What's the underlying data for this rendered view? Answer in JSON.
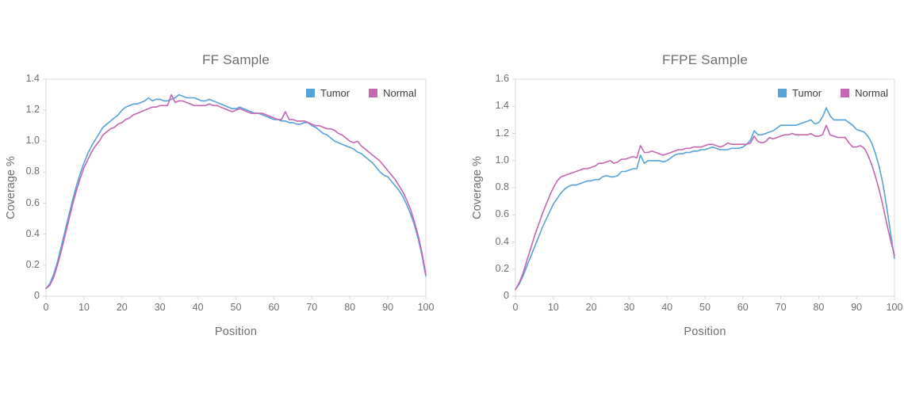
{
  "colors": {
    "tumor": "#56a3da",
    "normal": "#c367b2",
    "axis_line": "#d7dadd",
    "tick_line": "#d2d5d8",
    "muted_text": "#6e6e6e",
    "legend_text": "#3d3d3d"
  },
  "chart_data": [
    {
      "type": "line",
      "title": "FF Sample",
      "xlabel": "Position",
      "ylabel": "Coverage %",
      "xlim": [
        0,
        100
      ],
      "ylim": [
        0,
        1.4
      ],
      "xticks": [
        "0",
        "10",
        "20",
        "30",
        "40",
        "50",
        "60",
        "70",
        "80",
        "90",
        "100"
      ],
      "yticks": [
        "0",
        "0.2",
        "0.4",
        "0.6",
        "0.8",
        "1.0",
        "1.2",
        "1.4"
      ],
      "grid": false,
      "legend_position": "top-right-inside",
      "x_start": 0,
      "x_step": 1,
      "series": [
        {
          "name": "Tumor",
          "color": "#56a3da",
          "values": [
            0.05,
            0.08,
            0.14,
            0.22,
            0.32,
            0.42,
            0.52,
            0.62,
            0.71,
            0.79,
            0.86,
            0.92,
            0.97,
            1.01,
            1.05,
            1.09,
            1.11,
            1.13,
            1.15,
            1.17,
            1.2,
            1.22,
            1.23,
            1.24,
            1.24,
            1.25,
            1.26,
            1.28,
            1.26,
            1.27,
            1.27,
            1.26,
            1.26,
            1.27,
            1.28,
            1.3,
            1.29,
            1.28,
            1.28,
            1.28,
            1.27,
            1.26,
            1.26,
            1.27,
            1.26,
            1.25,
            1.24,
            1.23,
            1.22,
            1.21,
            1.21,
            1.22,
            1.21,
            1.2,
            1.19,
            1.18,
            1.18,
            1.17,
            1.16,
            1.15,
            1.14,
            1.14,
            1.13,
            1.13,
            1.12,
            1.12,
            1.11,
            1.11,
            1.12,
            1.12,
            1.1,
            1.09,
            1.07,
            1.05,
            1.04,
            1.02,
            1.0,
            0.99,
            0.98,
            0.97,
            0.96,
            0.95,
            0.93,
            0.92,
            0.9,
            0.88,
            0.86,
            0.83,
            0.8,
            0.78,
            0.77,
            0.74,
            0.71,
            0.68,
            0.64,
            0.59,
            0.53,
            0.46,
            0.37,
            0.26,
            0.13
          ]
        },
        {
          "name": "Normal",
          "color": "#c367b2",
          "values": [
            0.05,
            0.07,
            0.12,
            0.2,
            0.29,
            0.39,
            0.49,
            0.59,
            0.68,
            0.76,
            0.83,
            0.88,
            0.93,
            0.97,
            1.0,
            1.04,
            1.06,
            1.08,
            1.09,
            1.11,
            1.12,
            1.14,
            1.15,
            1.17,
            1.18,
            1.19,
            1.2,
            1.21,
            1.22,
            1.22,
            1.23,
            1.23,
            1.23,
            1.3,
            1.25,
            1.26,
            1.26,
            1.25,
            1.24,
            1.23,
            1.23,
            1.23,
            1.23,
            1.24,
            1.23,
            1.23,
            1.22,
            1.21,
            1.2,
            1.19,
            1.2,
            1.21,
            1.2,
            1.19,
            1.18,
            1.18,
            1.18,
            1.18,
            1.17,
            1.16,
            1.15,
            1.14,
            1.14,
            1.19,
            1.14,
            1.14,
            1.13,
            1.13,
            1.13,
            1.12,
            1.11,
            1.1,
            1.1,
            1.09,
            1.08,
            1.08,
            1.07,
            1.05,
            1.04,
            1.02,
            1.0,
            0.99,
            1.0,
            0.97,
            0.95,
            0.93,
            0.91,
            0.89,
            0.87,
            0.84,
            0.81,
            0.78,
            0.75,
            0.71,
            0.67,
            0.62,
            0.56,
            0.48,
            0.39,
            0.28,
            0.14
          ]
        }
      ]
    },
    {
      "type": "line",
      "title": "FFPE Sample",
      "xlabel": "Position",
      "ylabel": "Coverage %",
      "xlim": [
        0,
        100
      ],
      "ylim": [
        0,
        1.6
      ],
      "xticks": [
        "0",
        "10",
        "20",
        "30",
        "40",
        "50",
        "60",
        "70",
        "80",
        "90",
        "100"
      ],
      "yticks": [
        "0",
        "0.2",
        "0.4",
        "0.6",
        "0.8",
        "1.0",
        "1.2",
        "1.4",
        "1.6"
      ],
      "grid": false,
      "legend_position": "top-right-inside",
      "x_start": 0,
      "x_step": 1,
      "series": [
        {
          "name": "Tumor",
          "color": "#56a3da",
          "values": [
            0.05,
            0.09,
            0.15,
            0.22,
            0.29,
            0.36,
            0.43,
            0.5,
            0.56,
            0.62,
            0.68,
            0.72,
            0.76,
            0.79,
            0.81,
            0.82,
            0.82,
            0.83,
            0.84,
            0.85,
            0.85,
            0.86,
            0.86,
            0.88,
            0.89,
            0.88,
            0.88,
            0.89,
            0.92,
            0.92,
            0.93,
            0.94,
            0.94,
            1.04,
            0.98,
            1.0,
            1.0,
            1.0,
            1.0,
            0.99,
            1.0,
            1.02,
            1.04,
            1.05,
            1.05,
            1.06,
            1.06,
            1.07,
            1.07,
            1.08,
            1.08,
            1.09,
            1.1,
            1.09,
            1.08,
            1.08,
            1.08,
            1.09,
            1.09,
            1.09,
            1.1,
            1.12,
            1.15,
            1.22,
            1.19,
            1.19,
            1.2,
            1.21,
            1.22,
            1.24,
            1.26,
            1.26,
            1.26,
            1.26,
            1.26,
            1.27,
            1.28,
            1.29,
            1.3,
            1.27,
            1.28,
            1.32,
            1.39,
            1.33,
            1.3,
            1.3,
            1.3,
            1.3,
            1.28,
            1.26,
            1.23,
            1.22,
            1.21,
            1.18,
            1.13,
            1.05,
            0.95,
            0.82,
            0.65,
            0.46,
            0.28
          ]
        },
        {
          "name": "Normal",
          "color": "#c367b2",
          "values": [
            0.05,
            0.1,
            0.17,
            0.26,
            0.35,
            0.44,
            0.52,
            0.6,
            0.67,
            0.74,
            0.8,
            0.85,
            0.88,
            0.89,
            0.9,
            0.91,
            0.92,
            0.93,
            0.94,
            0.94,
            0.95,
            0.96,
            0.98,
            0.98,
            0.99,
            1.0,
            0.98,
            0.99,
            1.01,
            1.01,
            1.02,
            1.03,
            1.02,
            1.11,
            1.06,
            1.06,
            1.07,
            1.06,
            1.05,
            1.04,
            1.05,
            1.06,
            1.07,
            1.08,
            1.08,
            1.09,
            1.09,
            1.1,
            1.1,
            1.1,
            1.11,
            1.12,
            1.12,
            1.11,
            1.1,
            1.11,
            1.13,
            1.12,
            1.12,
            1.12,
            1.12,
            1.12,
            1.13,
            1.18,
            1.14,
            1.13,
            1.14,
            1.17,
            1.16,
            1.17,
            1.18,
            1.19,
            1.19,
            1.2,
            1.19,
            1.19,
            1.19,
            1.19,
            1.2,
            1.18,
            1.18,
            1.19,
            1.26,
            1.19,
            1.18,
            1.17,
            1.17,
            1.17,
            1.13,
            1.1,
            1.1,
            1.11,
            1.09,
            1.04,
            0.97,
            0.88,
            0.78,
            0.66,
            0.53,
            0.41,
            0.3
          ]
        }
      ]
    }
  ]
}
